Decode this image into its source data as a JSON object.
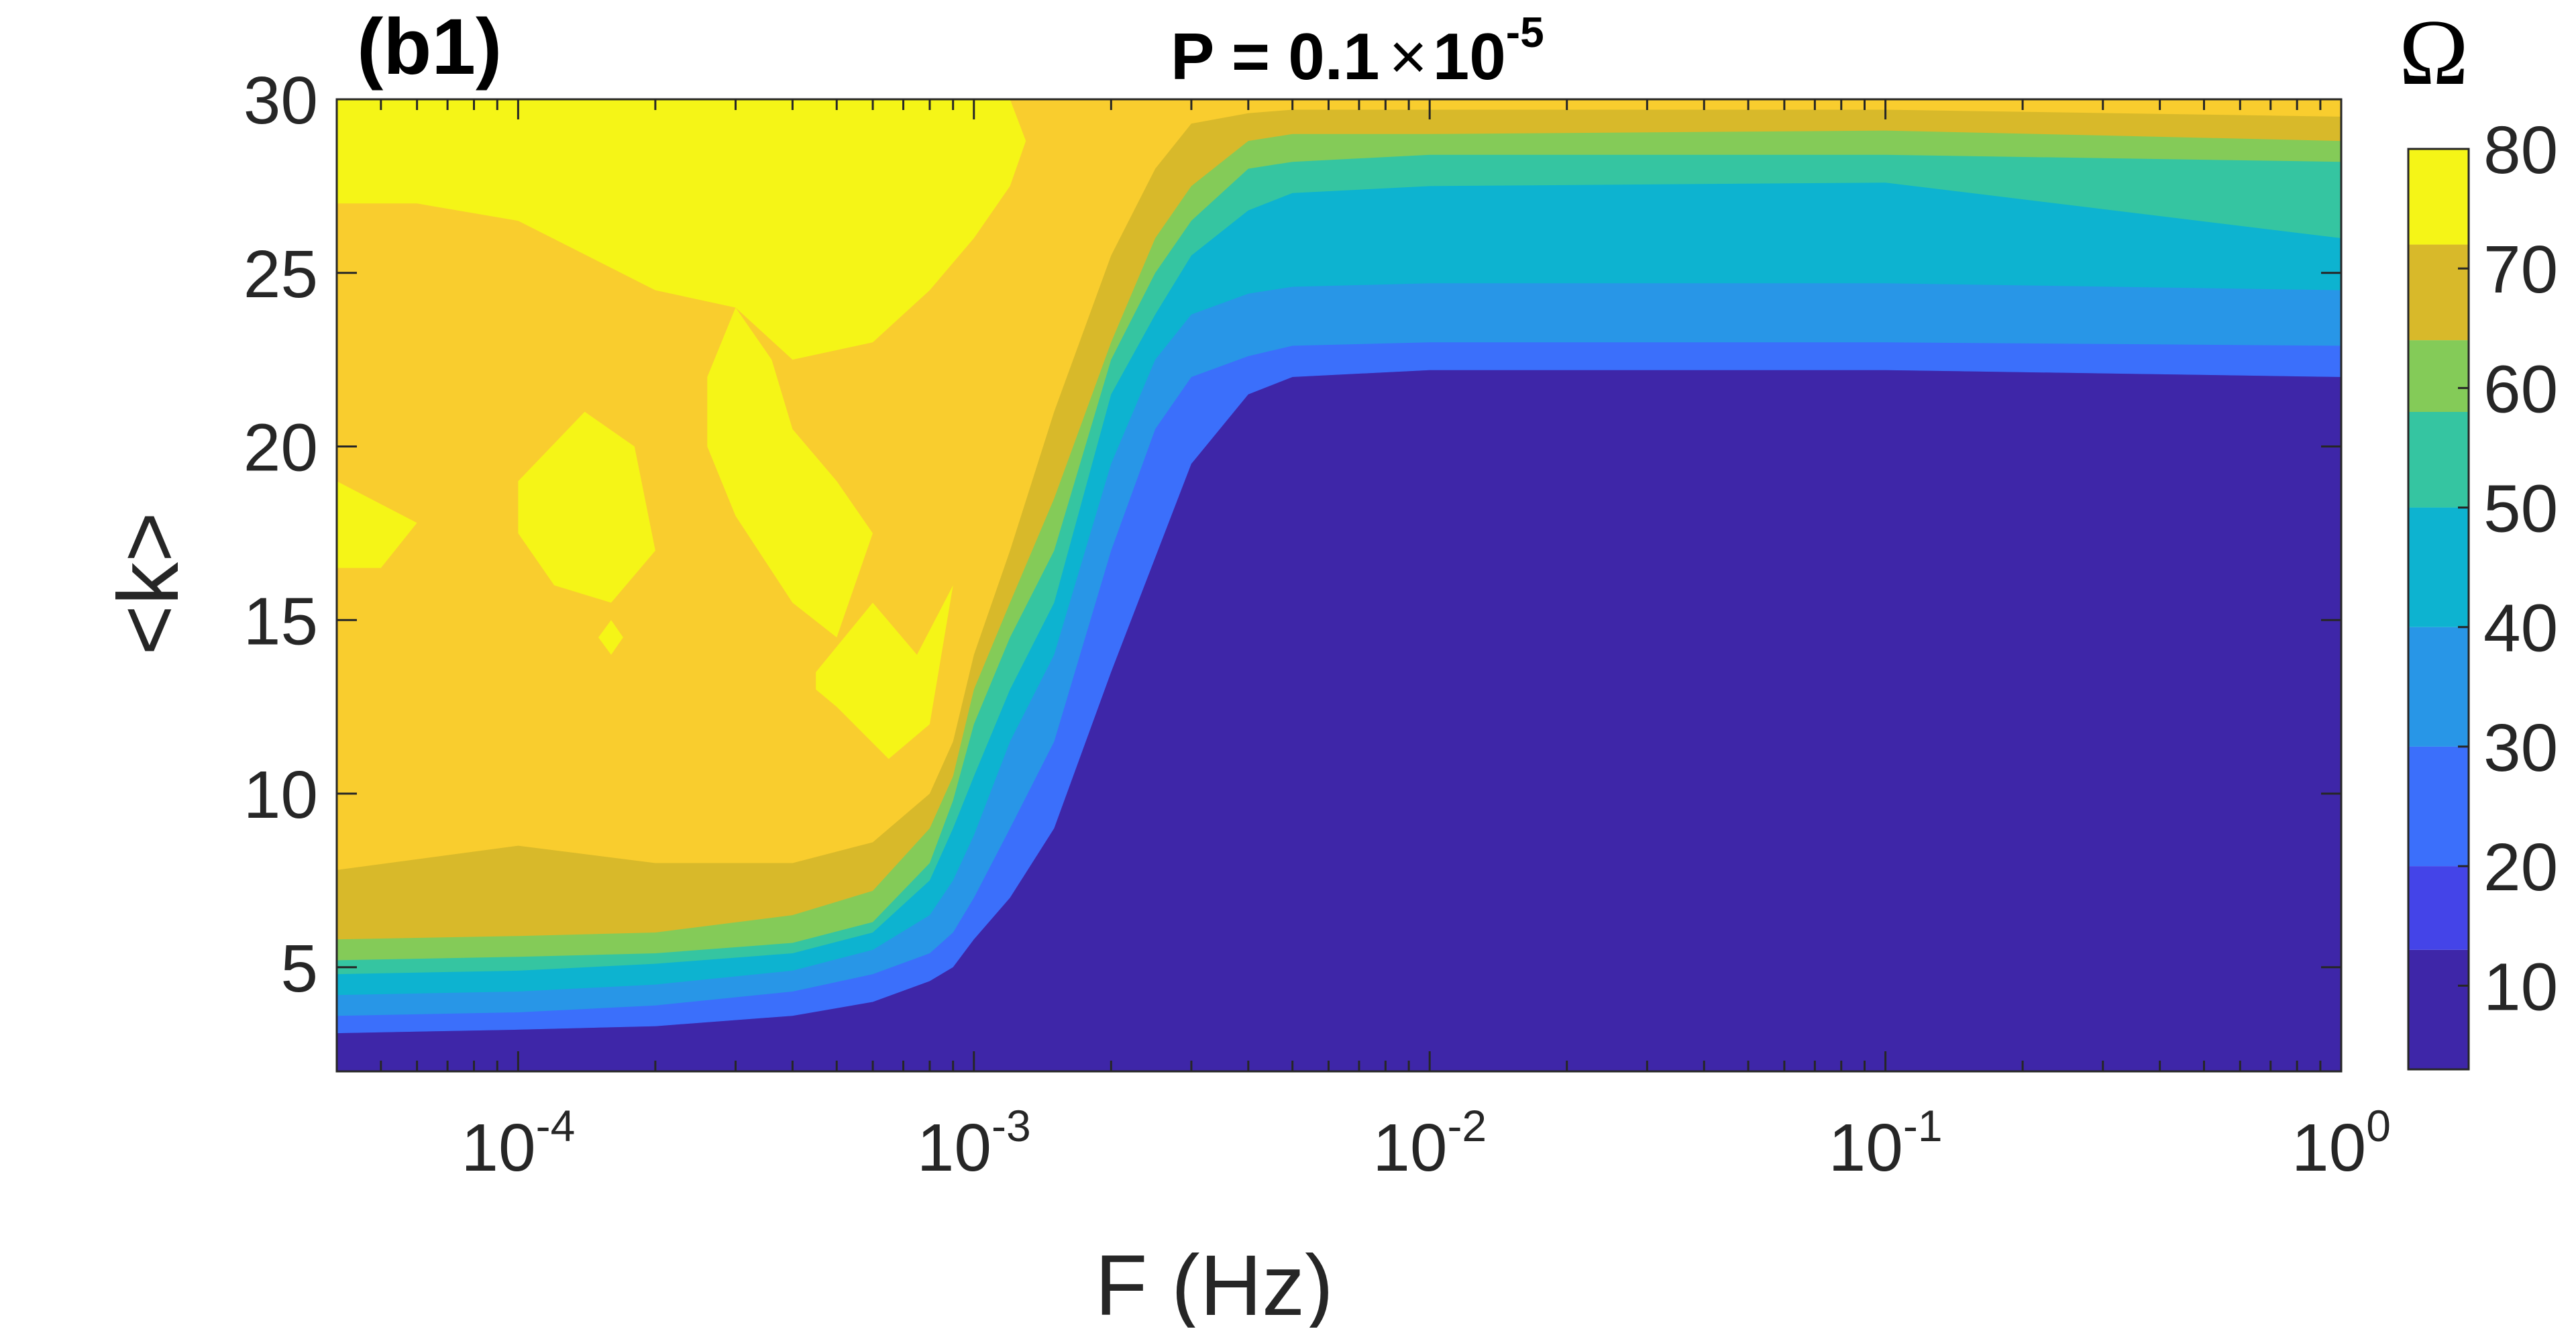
{
  "chart_data": {
    "type": "heatmap",
    "subtype": "filled-contour",
    "panel_label": "(b1)",
    "title": {
      "text": "P = 0.1",
      "times": "×",
      "base": "10",
      "exponent": "-5"
    },
    "xlabel": "F (Hz)",
    "ylabel": "<k>",
    "xscale": "log",
    "xlim": [
      4e-05,
      1
    ],
    "ylim": [
      2,
      30
    ],
    "x_ticks": [
      {
        "value": 0.0001,
        "base": "10",
        "exponent": "-4"
      },
      {
        "value": 0.001,
        "base": "10",
        "exponent": "-3"
      },
      {
        "value": 0.01,
        "base": "10",
        "exponent": "-2"
      },
      {
        "value": 0.1,
        "base": "10",
        "exponent": "-1"
      },
      {
        "value": 1,
        "base": "10",
        "exponent": "0"
      }
    ],
    "y_ticks": [
      {
        "value": 5,
        "label": "5"
      },
      {
        "value": 10,
        "label": "10"
      },
      {
        "value": 15,
        "label": "15"
      },
      {
        "value": 20,
        "label": "20"
      },
      {
        "value": 25,
        "label": "25"
      },
      {
        "value": 30,
        "label": "30"
      }
    ],
    "colorbar": {
      "label": "Ω",
      "range": [
        3,
        80
      ],
      "ticks": [
        {
          "value": 10,
          "label": "10"
        },
        {
          "value": 20,
          "label": "20"
        },
        {
          "value": 30,
          "label": "30"
        },
        {
          "value": 40,
          "label": "40"
        },
        {
          "value": 50,
          "label": "50"
        },
        {
          "value": 60,
          "label": "60"
        },
        {
          "value": 70,
          "label": "70"
        },
        {
          "value": 80,
          "label": "80"
        }
      ],
      "levels": [
        {
          "lo": 3,
          "hi": 13,
          "color": "#3e26a8"
        },
        {
          "lo": 13,
          "hi": 20,
          "color": "#4444e8"
        },
        {
          "lo": 20,
          "hi": 30,
          "color": "#3b6ffb"
        },
        {
          "lo": 30,
          "hi": 40,
          "color": "#2896e7"
        },
        {
          "lo": 40,
          "hi": 50,
          "color": "#0db3d0"
        },
        {
          "lo": 50,
          "hi": 58,
          "color": "#35c5a1"
        },
        {
          "lo": 58,
          "hi": 64,
          "color": "#84cb58"
        },
        {
          "lo": 64,
          "hi": 72,
          "color": "#d8b92a"
        },
        {
          "lo": 72,
          "hi": 80,
          "color": "#f9cd2e"
        }
      ],
      "top_color": "#f5f517"
    },
    "boundaries": {
      "x": [
        4e-05,
        0.0001,
        0.0002,
        0.0004,
        0.0006,
        0.0008,
        0.0009,
        0.001,
        0.0012,
        0.0015,
        0.002,
        0.0025,
        0.003,
        0.004,
        0.005,
        0.01,
        0.1,
        1
      ],
      "lines": [
        {
          "level": 13,
          "k": [
            3.1,
            3.2,
            3.3,
            3.6,
            4.0,
            4.6,
            5.0,
            5.8,
            7.0,
            9.0,
            13.5,
            16.8,
            19.5,
            21.5,
            22.0,
            22.2,
            22.2,
            22.0
          ]
        },
        {
          "level": 20,
          "k": [
            3.6,
            3.7,
            3.9,
            4.3,
            4.8,
            5.4,
            6.0,
            7.0,
            9.0,
            11.5,
            17.0,
            20.5,
            22.0,
            22.6,
            22.9,
            23.0,
            23.0,
            22.9
          ]
        },
        {
          "level": 30,
          "k": [
            4.2,
            4.3,
            4.5,
            4.9,
            5.5,
            6.5,
            7.5,
            8.8,
            11.5,
            14.0,
            19.5,
            22.5,
            23.8,
            24.4,
            24.6,
            24.7,
            24.7,
            24.5
          ]
        },
        {
          "level": 40,
          "k": [
            4.8,
            4.9,
            5.1,
            5.4,
            6.0,
            7.5,
            9.0,
            10.5,
            13.0,
            15.5,
            21.5,
            23.8,
            25.5,
            26.8,
            27.3,
            27.5,
            27.6,
            26.0
          ]
        },
        {
          "level": 50,
          "k": [
            5.2,
            5.3,
            5.4,
            5.7,
            6.3,
            8.0,
            9.8,
            12.0,
            14.5,
            17.0,
            22.5,
            25.0,
            26.5,
            28.0,
            28.2,
            28.4,
            28.4,
            28.2
          ]
        },
        {
          "level": 58,
          "k": [
            5.8,
            5.9,
            6.0,
            6.5,
            7.2,
            9.0,
            10.5,
            13.0,
            15.5,
            18.5,
            23.0,
            26.0,
            27.5,
            28.8,
            29.0,
            29.0,
            29.1,
            28.8
          ]
        },
        {
          "level": 64,
          "k": [
            7.8,
            8.5,
            8.0,
            8.0,
            8.6,
            10.0,
            11.5,
            14.0,
            17.0,
            21.0,
            25.5,
            28.0,
            29.3,
            29.6,
            29.7,
            29.7,
            29.7,
            29.5
          ]
        }
      ],
      "yellow_patches": [
        {
          "x": [
            4e-05,
            0.0001,
            0.0002,
            0.0003,
            0.0004,
            0.0006,
            0.0008,
            0.001,
            0.0012,
            0.0013,
            0.0012,
            0.001,
            0.0008,
            0.0006,
            0.0004,
            0.0003,
            0.0002,
            0.0001,
            6e-05,
            4e-05
          ],
          "k": [
            30,
            30,
            30,
            30,
            30,
            30,
            30,
            30,
            30,
            28.8,
            27.5,
            26.0,
            24.5,
            23.0,
            22.5,
            24.0,
            24.5,
            26.5,
            27.0,
            27.0
          ]
        },
        {
          "x": [
            4e-05,
            6e-05,
            5e-05,
            4e-05
          ],
          "k": [
            19.0,
            17.8,
            16.5,
            16.5
          ]
        },
        {
          "x": [
            0.0001,
            0.00014,
            0.00018,
            0.0002,
            0.00016,
            0.00012,
            0.0001
          ],
          "k": [
            19.0,
            21.0,
            20.0,
            17.0,
            15.5,
            16.0,
            17.5
          ]
        },
        {
          "x": [
            0.00026,
            0.0003,
            0.00036,
            0.0004,
            0.0005,
            0.0006,
            0.0005,
            0.0004,
            0.0003,
            0.00026
          ],
          "k": [
            22.0,
            24.0,
            22.5,
            20.5,
            19.0,
            17.5,
            14.5,
            15.5,
            18.0,
            20.0
          ]
        },
        {
          "x": [
            0.00045,
            0.0006,
            0.00075,
            0.0009,
            0.0008,
            0.00065,
            0.0005,
            0.00045
          ],
          "k": [
            13.5,
            15.5,
            14.0,
            16.0,
            12.0,
            11.0,
            12.5,
            13.0
          ]
        },
        {
          "x": [
            0.00015,
            0.00016,
            0.00017,
            0.00016
          ],
          "k": [
            14.5,
            14.0,
            14.5,
            15.0
          ]
        }
      ]
    }
  }
}
